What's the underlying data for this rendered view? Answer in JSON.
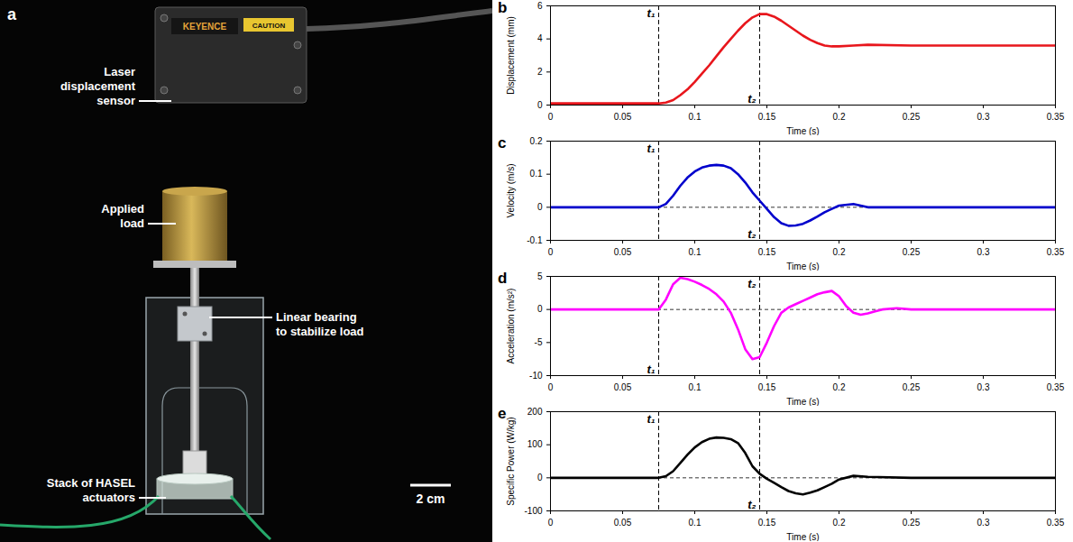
{
  "panel_a": {
    "panel_label": "a",
    "labels": [
      {
        "lines": [
          "Laser",
          "displacement",
          "sensor"
        ]
      },
      {
        "lines": [
          "Applied",
          "load"
        ]
      },
      {
        "lines": [
          "Linear bearing",
          "to stabilize load"
        ]
      },
      {
        "lines": [
          "Stack of HASEL",
          "actuators"
        ]
      }
    ],
    "sensor_texts": [
      "KEYENCE",
      "CAUTION"
    ],
    "scale_bar": "2 cm"
  },
  "chart_data": [
    {
      "panel_label": "b",
      "type": "line",
      "color": "#e8161c",
      "x_label": "Time (s)",
      "y_label": "Displacement (mm)",
      "x": [
        0,
        0.05,
        0.075,
        0.08,
        0.085,
        0.09,
        0.095,
        0.1,
        0.105,
        0.11,
        0.115,
        0.12,
        0.125,
        0.13,
        0.135,
        0.14,
        0.145,
        0.15,
        0.155,
        0.16,
        0.165,
        0.17,
        0.175,
        0.18,
        0.185,
        0.19,
        0.195,
        0.2,
        0.21,
        0.22,
        0.25,
        0.3,
        0.35
      ],
      "values": [
        0.1,
        0.1,
        0.1,
        0.15,
        0.3,
        0.6,
        0.95,
        1.4,
        1.9,
        2.4,
        2.95,
        3.5,
        4.0,
        4.5,
        4.95,
        5.3,
        5.5,
        5.5,
        5.35,
        5.1,
        4.8,
        4.5,
        4.2,
        3.95,
        3.75,
        3.6,
        3.55,
        3.55,
        3.6,
        3.65,
        3.6,
        3.6,
        3.6
      ],
      "xlim": [
        0,
        0.35
      ],
      "xticks": [
        0,
        0.05,
        0.1,
        0.15,
        0.2,
        0.25,
        0.3,
        0.35
      ],
      "ylim": [
        0,
        6
      ],
      "yticks": [
        0,
        2,
        4,
        6
      ],
      "annotations": [
        {
          "text": "t₁",
          "x": 0.075
        },
        {
          "text": "t₂",
          "x": 0.145
        }
      ]
    },
    {
      "panel_label": "c",
      "type": "line",
      "color": "#0000cc",
      "x_label": "Time (s)",
      "y_label": "Velocity (m/s)",
      "x": [
        0,
        0.05,
        0.075,
        0.08,
        0.085,
        0.09,
        0.095,
        0.1,
        0.105,
        0.11,
        0.115,
        0.12,
        0.125,
        0.13,
        0.135,
        0.14,
        0.145,
        0.15,
        0.155,
        0.16,
        0.165,
        0.17,
        0.175,
        0.18,
        0.185,
        0.19,
        0.195,
        0.2,
        0.21,
        0.22,
        0.25,
        0.3,
        0.35
      ],
      "values": [
        0,
        0,
        0,
        0.01,
        0.035,
        0.065,
        0.09,
        0.108,
        0.12,
        0.126,
        0.128,
        0.126,
        0.118,
        0.1,
        0.075,
        0.045,
        0.02,
        -0.005,
        -0.03,
        -0.048,
        -0.056,
        -0.055,
        -0.05,
        -0.04,
        -0.028,
        -0.015,
        -0.005,
        0.005,
        0.01,
        0,
        0,
        0,
        0
      ],
      "xlim": [
        0,
        0.35
      ],
      "xticks": [
        0,
        0.05,
        0.1,
        0.15,
        0.2,
        0.25,
        0.3,
        0.35
      ],
      "ylim": [
        -0.1,
        0.2
      ],
      "yticks": [
        -0.1,
        0,
        0.1,
        0.2
      ],
      "hline": 0,
      "annotations": [
        {
          "text": "t₁",
          "x": 0.075
        },
        {
          "text": "t₂",
          "x": 0.145
        }
      ]
    },
    {
      "panel_label": "d",
      "type": "line",
      "color": "#ff00ff",
      "x_label": "Time (s)",
      "y_label": "Acceleration (m/s²)",
      "x": [
        0,
        0.05,
        0.075,
        0.08,
        0.085,
        0.09,
        0.095,
        0.1,
        0.105,
        0.11,
        0.115,
        0.12,
        0.125,
        0.13,
        0.135,
        0.14,
        0.145,
        0.15,
        0.155,
        0.16,
        0.165,
        0.17,
        0.175,
        0.18,
        0.185,
        0.19,
        0.195,
        0.2,
        0.205,
        0.21,
        0.215,
        0.22,
        0.225,
        0.23,
        0.24,
        0.25,
        0.3,
        0.35
      ],
      "values": [
        0,
        0,
        0,
        1.5,
        3.8,
        4.8,
        4.6,
        4.2,
        3.7,
        3.1,
        2.3,
        1.2,
        -0.5,
        -3.0,
        -6.0,
        -7.5,
        -7.2,
        -5.0,
        -2.5,
        -0.5,
        0.3,
        0.8,
        1.3,
        1.8,
        2.3,
        2.6,
        2.8,
        2.0,
        0.5,
        -0.5,
        -0.8,
        -0.6,
        -0.3,
        0,
        0.2,
        0,
        0,
        0
      ],
      "xlim": [
        0,
        0.35
      ],
      "xticks": [
        0,
        0.05,
        0.1,
        0.15,
        0.2,
        0.25,
        0.3,
        0.35
      ],
      "ylim": [
        -10,
        5
      ],
      "yticks": [
        -10,
        -5,
        0,
        5
      ],
      "hline": 0,
      "annotations": [
        {
          "text": "t₁",
          "x": 0.075
        },
        {
          "text": "t₂",
          "x": 0.145
        }
      ]
    },
    {
      "panel_label": "e",
      "type": "line",
      "color": "#000000",
      "x_label": "Time (s)",
      "y_label": "Specific Power (W/kg)",
      "x": [
        0,
        0.05,
        0.075,
        0.08,
        0.085,
        0.09,
        0.095,
        0.1,
        0.105,
        0.11,
        0.115,
        0.12,
        0.125,
        0.13,
        0.135,
        0.14,
        0.145,
        0.15,
        0.155,
        0.16,
        0.165,
        0.17,
        0.175,
        0.18,
        0.185,
        0.19,
        0.195,
        0.2,
        0.21,
        0.22,
        0.25,
        0.3,
        0.35
      ],
      "values": [
        0,
        0,
        0,
        5,
        20,
        45,
        70,
        92,
        108,
        118,
        122,
        121,
        117,
        105,
        75,
        35,
        12,
        -3,
        -15,
        -28,
        -40,
        -47,
        -50,
        -45,
        -38,
        -28,
        -18,
        -5,
        6,
        3,
        0,
        0,
        0
      ],
      "xlim": [
        0,
        0.35
      ],
      "xticks": [
        0,
        0.05,
        0.1,
        0.15,
        0.2,
        0.25,
        0.3,
        0.35
      ],
      "ylim": [
        -100,
        200
      ],
      "yticks": [
        -100,
        0,
        100,
        200
      ],
      "hline": 0,
      "annotations": [
        {
          "text": "t₁",
          "x": 0.075
        },
        {
          "text": "t₂",
          "x": 0.145
        }
      ]
    }
  ]
}
